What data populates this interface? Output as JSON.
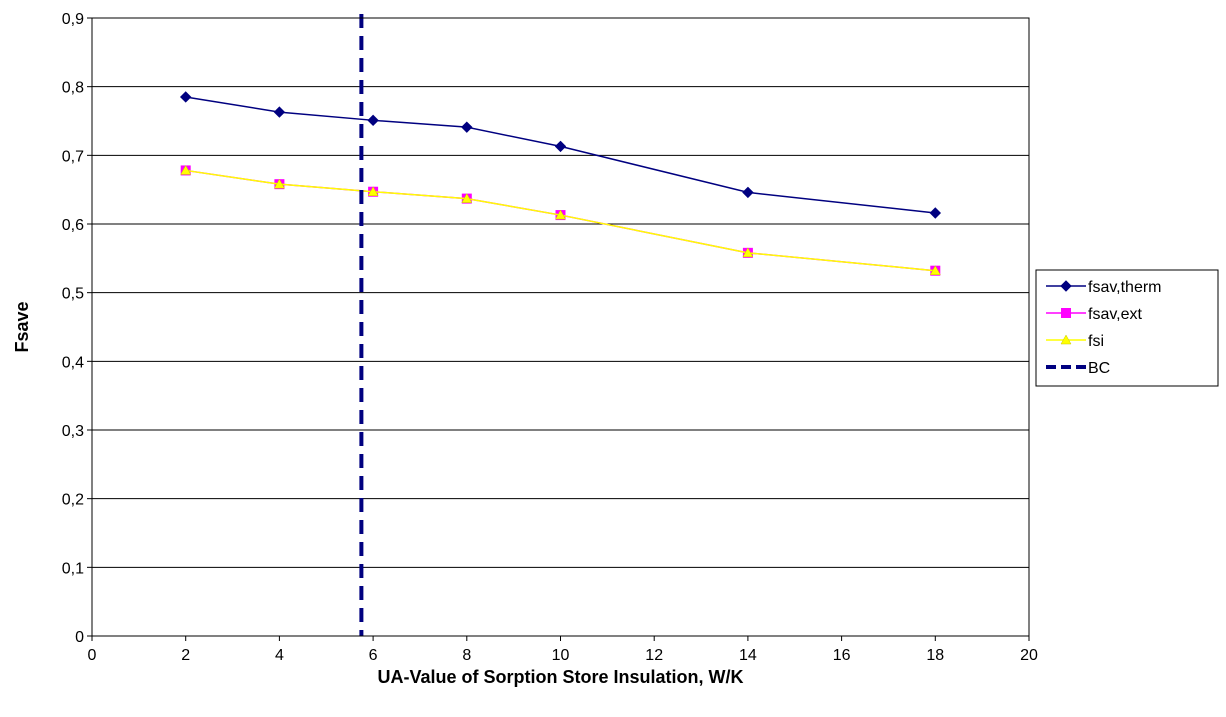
{
  "chart_data": {
    "type": "line",
    "title": "",
    "xlabel": "UA-Value of Sorption Store Insulation, W/K",
    "ylabel": "Fsave",
    "xlim": [
      0,
      20
    ],
    "ylim": [
      0,
      0.9
    ],
    "xticks": [
      0,
      2,
      4,
      6,
      8,
      10,
      12,
      14,
      16,
      18,
      20
    ],
    "xtick_labels": [
      "0",
      "2",
      "4",
      "6",
      "8",
      "10",
      "12",
      "14",
      "16",
      "18",
      "20"
    ],
    "yticks": [
      0,
      0.1,
      0.2,
      0.3,
      0.4,
      0.5,
      0.6,
      0.7,
      0.8,
      0.9
    ],
    "ytick_labels": [
      "0",
      "0,1",
      "0,2",
      "0,3",
      "0,4",
      "0,5",
      "0,6",
      "0,7",
      "0,8",
      "0,9"
    ],
    "grid": "horizontal",
    "legend_position": "right",
    "series": [
      {
        "name": "fsav,therm",
        "color": "#000080",
        "marker": "diamond",
        "x": [
          2,
          4,
          6,
          8,
          10,
          14,
          18
        ],
        "y": [
          0.785,
          0.763,
          0.751,
          0.741,
          0.713,
          0.646,
          0.616
        ]
      },
      {
        "name": "fsav,ext",
        "color": "#ff00ff",
        "marker": "square",
        "x": [
          2,
          4,
          6,
          8,
          10,
          14,
          18
        ],
        "y": [
          0.678,
          0.658,
          0.647,
          0.637,
          0.613,
          0.558,
          0.532
        ]
      },
      {
        "name": "fsi",
        "color": "#ffff00",
        "marker": "triangle",
        "x": [
          2,
          4,
          6,
          8,
          10,
          14,
          18
        ],
        "y": [
          0.678,
          0.658,
          0.647,
          0.637,
          0.613,
          0.558,
          0.532
        ]
      }
    ],
    "reference_line": {
      "name": "BC",
      "color": "#000080",
      "style": "dashed",
      "x": 5.75
    }
  }
}
